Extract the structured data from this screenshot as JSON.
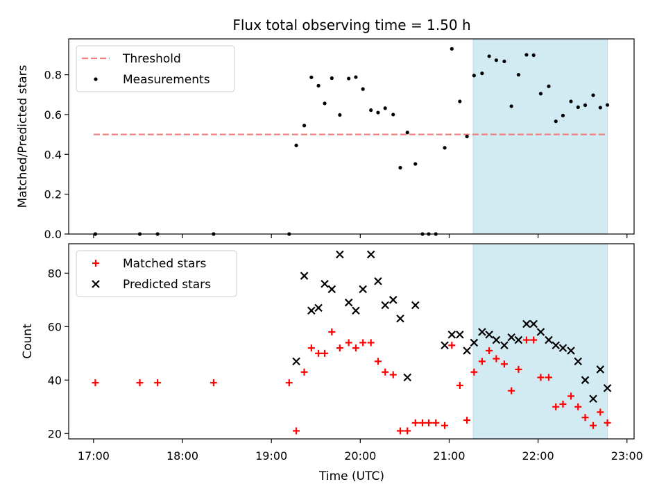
{
  "chart_data": {
    "title": "Flux total observing time = 1.50 h",
    "xlabel": "Time (UTC)",
    "x_ticks": [
      "17:00",
      "18:00",
      "19:00",
      "20:00",
      "21:00",
      "22:00",
      "23:00"
    ],
    "xlim_hours": [
      16.72,
      23.08
    ],
    "shaded_interval_hours": [
      21.27,
      22.78
    ],
    "shade_color": "#add8e6",
    "panels": [
      {
        "type": "scatter",
        "ylabel": "Matched/Predicted stars",
        "ylim": [
          0,
          0.98
        ],
        "y_ticks": [
          0.0,
          0.2,
          0.4,
          0.6,
          0.8
        ],
        "y_tick_labels": [
          "0.0",
          "0.2",
          "0.4",
          "0.6",
          "0.8"
        ],
        "legend": {
          "placement": "upper-left",
          "entries": [
            "Threshold",
            "Measurements"
          ]
        },
        "threshold": {
          "name": "Threshold",
          "value": 0.5,
          "x_range_hours": [
            17.0,
            22.78
          ],
          "color": "#f08080",
          "style": "dashed"
        },
        "series": [
          {
            "name": "Measurements",
            "marker": "dot",
            "color": "#000000",
            "points": [
              [
                17.02,
                0.0
              ],
              [
                17.52,
                0.0
              ],
              [
                17.72,
                0.0
              ],
              [
                18.35,
                0.0
              ],
              [
                19.2,
                0.0
              ],
              [
                19.28,
                0.445
              ],
              [
                19.37,
                0.545
              ],
              [
                19.45,
                0.787
              ],
              [
                19.53,
                0.745
              ],
              [
                19.6,
                0.656
              ],
              [
                19.68,
                0.783
              ],
              [
                19.77,
                0.598
              ],
              [
                19.87,
                0.781
              ],
              [
                19.95,
                0.788
              ],
              [
                20.03,
                0.728
              ],
              [
                20.12,
                0.622
              ],
              [
                20.2,
                0.61
              ],
              [
                20.28,
                0.632
              ],
              [
                20.37,
                0.6
              ],
              [
                20.45,
                0.333
              ],
              [
                20.53,
                0.51
              ],
              [
                20.62,
                0.352
              ],
              [
                20.7,
                0.0
              ],
              [
                20.77,
                0.0
              ],
              [
                20.85,
                0.0
              ],
              [
                20.95,
                0.433
              ],
              [
                21.03,
                0.93
              ],
              [
                21.12,
                0.666
              ],
              [
                21.2,
                0.49
              ],
              [
                21.28,
                0.796
              ],
              [
                21.37,
                0.807
              ],
              [
                21.45,
                0.893
              ],
              [
                21.53,
                0.873
              ],
              [
                21.62,
                0.867
              ],
              [
                21.7,
                0.642
              ],
              [
                21.78,
                0.8
              ],
              [
                21.87,
                0.9
              ],
              [
                21.95,
                0.898
              ],
              [
                22.03,
                0.705
              ],
              [
                22.12,
                0.742
              ],
              [
                22.2,
                0.566
              ],
              [
                22.28,
                0.595
              ],
              [
                22.37,
                0.666
              ],
              [
                22.45,
                0.637
              ],
              [
                22.53,
                0.647
              ],
              [
                22.62,
                0.697
              ],
              [
                22.7,
                0.635
              ],
              [
                22.78,
                0.648
              ]
            ]
          }
        ]
      },
      {
        "type": "scatter",
        "ylabel": "Count",
        "ylim": [
          18,
          91
        ],
        "y_ticks": [
          20,
          40,
          60,
          80
        ],
        "y_tick_labels": [
          "20",
          "40",
          "60",
          "80"
        ],
        "legend": {
          "placement": "upper-left",
          "entries": [
            "Matched stars",
            "Predicted stars"
          ]
        },
        "series": [
          {
            "name": "Matched stars",
            "marker": "plus",
            "color": "#ff0000",
            "points": [
              [
                17.02,
                39
              ],
              [
                17.52,
                39
              ],
              [
                17.72,
                39
              ],
              [
                18.35,
                39
              ],
              [
                19.2,
                39
              ],
              [
                19.28,
                21
              ],
              [
                19.37,
                43
              ],
              [
                19.45,
                52
              ],
              [
                19.53,
                50
              ],
              [
                19.6,
                50
              ],
              [
                19.68,
                58
              ],
              [
                19.77,
                52
              ],
              [
                19.87,
                54
              ],
              [
                19.95,
                52
              ],
              [
                20.03,
                54
              ],
              [
                20.12,
                54
              ],
              [
                20.2,
                47
              ],
              [
                20.28,
                43
              ],
              [
                20.37,
                42
              ],
              [
                20.45,
                21
              ],
              [
                20.53,
                21
              ],
              [
                20.62,
                24
              ],
              [
                20.7,
                24
              ],
              [
                20.77,
                24
              ],
              [
                20.85,
                24
              ],
              [
                20.95,
                23
              ],
              [
                21.03,
                53
              ],
              [
                21.12,
                38
              ],
              [
                21.2,
                25
              ],
              [
                21.28,
                43
              ],
              [
                21.37,
                47
              ],
              [
                21.45,
                51
              ],
              [
                21.53,
                48
              ],
              [
                21.62,
                46
              ],
              [
                21.7,
                36
              ],
              [
                21.78,
                44
              ],
              [
                21.87,
                55
              ],
              [
                21.95,
                55
              ],
              [
                22.03,
                41
              ],
              [
                22.12,
                41
              ],
              [
                22.2,
                30
              ],
              [
                22.28,
                31
              ],
              [
                22.37,
                34
              ],
              [
                22.45,
                30
              ],
              [
                22.53,
                26
              ],
              [
                22.62,
                23
              ],
              [
                22.7,
                28
              ],
              [
                22.78,
                24
              ]
            ]
          },
          {
            "name": "Predicted stars",
            "marker": "x",
            "color": "#000000",
            "points": [
              [
                19.28,
                47
              ],
              [
                19.37,
                79
              ],
              [
                19.45,
                66
              ],
              [
                19.53,
                67
              ],
              [
                19.6,
                76
              ],
              [
                19.68,
                74
              ],
              [
                19.77,
                87
              ],
              [
                19.87,
                69
              ],
              [
                19.95,
                66
              ],
              [
                20.03,
                74
              ],
              [
                20.12,
                87
              ],
              [
                20.2,
                77
              ],
              [
                20.28,
                68
              ],
              [
                20.37,
                70
              ],
              [
                20.45,
                63
              ],
              [
                20.53,
                41
              ],
              [
                20.62,
                68
              ],
              [
                20.95,
                53
              ],
              [
                21.03,
                57
              ],
              [
                21.12,
                57
              ],
              [
                21.2,
                51
              ],
              [
                21.28,
                54
              ],
              [
                21.37,
                58
              ],
              [
                21.45,
                57
              ],
              [
                21.53,
                55
              ],
              [
                21.62,
                53
              ],
              [
                21.7,
                56
              ],
              [
                21.78,
                55
              ],
              [
                21.87,
                61
              ],
              [
                21.95,
                61
              ],
              [
                22.03,
                58
              ],
              [
                22.12,
                55
              ],
              [
                22.2,
                53
              ],
              [
                22.28,
                52
              ],
              [
                22.37,
                51
              ],
              [
                22.45,
                47
              ],
              [
                22.53,
                40
              ],
              [
                22.62,
                33
              ],
              [
                22.7,
                44
              ],
              [
                22.78,
                37
              ]
            ]
          }
        ]
      }
    ]
  }
}
